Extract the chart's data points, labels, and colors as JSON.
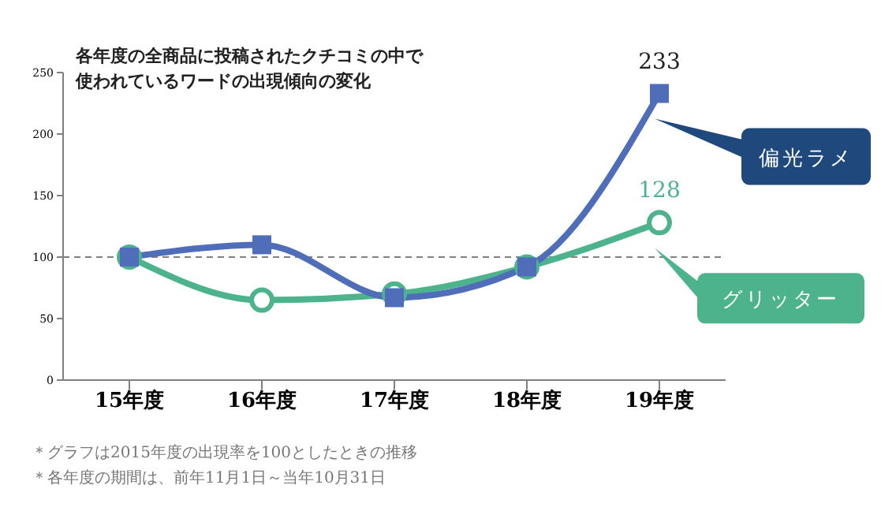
{
  "chart_data": {
    "type": "line",
    "title": "各年度の全商品に投稿されたクチコミの中で使われているワードの出現傾向の変化",
    "categories": [
      "15年度",
      "16年度",
      "17年度",
      "18年度",
      "19年度"
    ],
    "series": [
      {
        "name": "偏光ラメ",
        "color": "#4f6db8",
        "marker": "square",
        "values": [
          100,
          110,
          67,
          92,
          233
        ],
        "value_labels": [
          null,
          null,
          null,
          null,
          "233"
        ]
      },
      {
        "name": "グリッター",
        "color": "#4cb38c",
        "marker": "circle",
        "values": [
          100,
          65,
          70,
          92,
          128
        ],
        "value_labels": [
          null,
          null,
          null,
          null,
          "128"
        ]
      }
    ],
    "ylim": [
      0,
      250
    ],
    "yticks": [
      0,
      50,
      100,
      150,
      200,
      250
    ],
    "grid": false,
    "legend": false,
    "ref_lines": [
      {
        "axis": "y",
        "value": 100,
        "line_style": "dashed",
        "color": "#808080"
      }
    ],
    "annotations": [
      "＊グラフは2015年度の出現率を100としたときの推移",
      "＊各年度の期間は、前年11月1日～当年10月31日"
    ]
  }
}
